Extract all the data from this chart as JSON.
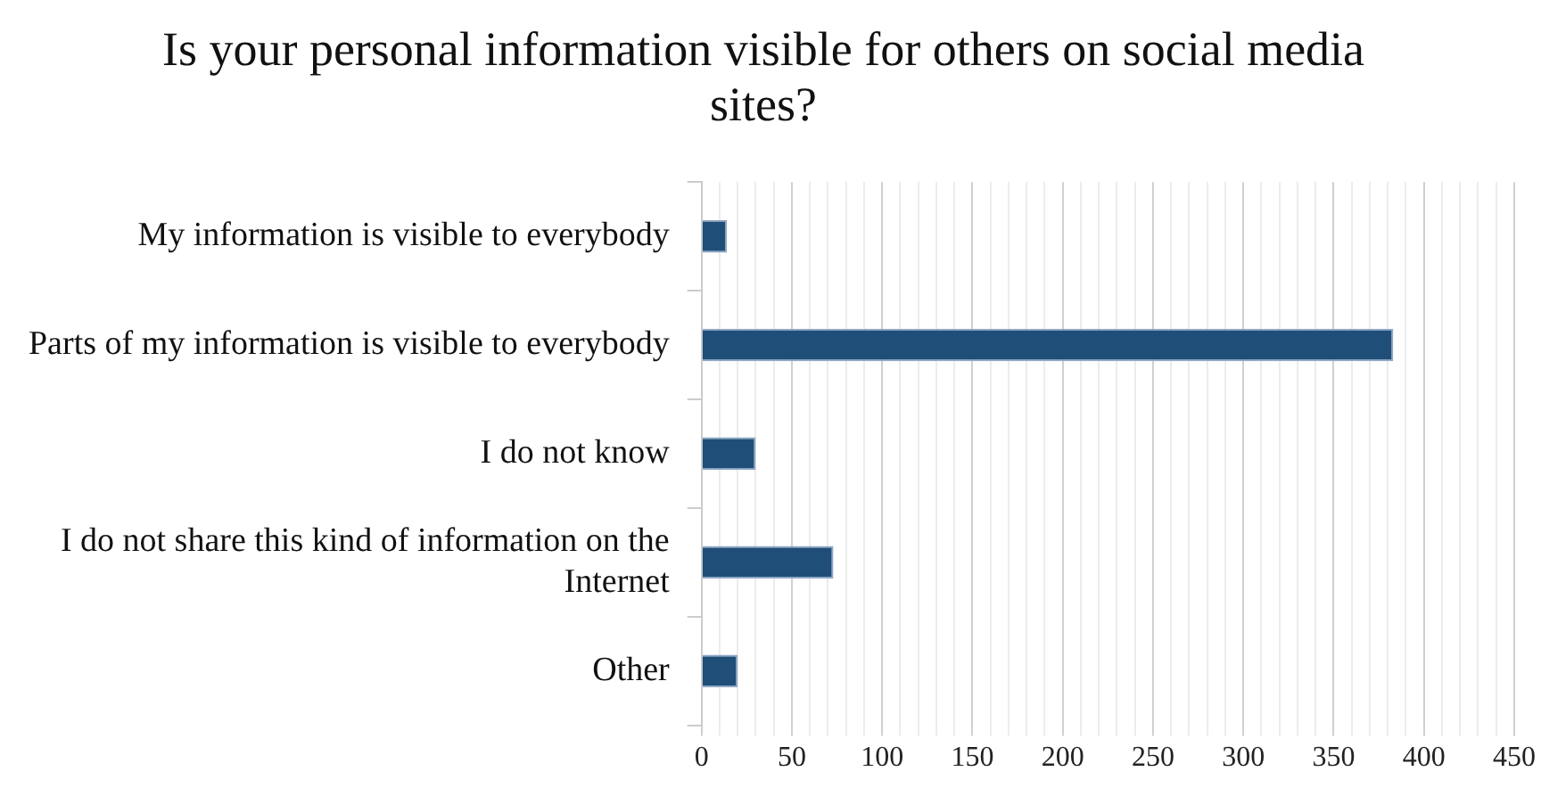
{
  "chart_data": {
    "type": "bar",
    "orientation": "horizontal",
    "title": "Is your personal information visible for others on social media sites?",
    "categories": [
      "My information is visible to everybody",
      "Parts of my information is visible to everybody",
      "I do not know",
      "I do not share this kind of information on the Internet",
      "Other"
    ],
    "values": [
      14,
      383,
      30,
      73,
      20
    ],
    "color": "#1f4e79",
    "xlim": [
      0,
      450
    ],
    "xticks": [
      0,
      {
        "value": 10,
        "label": null
      },
      {
        "value": 20,
        "label": null
      },
      {
        "value": 30,
        "label": null
      },
      {
        "value": 40,
        "label": null
      },
      50,
      {
        "value": 60,
        "label": null
      },
      {
        "value": 70,
        "label": null
      },
      {
        "value": 80,
        "label": null
      },
      {
        "value": 90,
        "label": null
      },
      100,
      {
        "value": 110,
        "label": null
      },
      {
        "value": 120,
        "label": null
      },
      {
        "value": 130,
        "label": null
      },
      {
        "value": 140,
        "label": null
      },
      150,
      {
        "value": 160,
        "label": null
      },
      {
        "value": 170,
        "label": null
      },
      {
        "value": 180,
        "label": null
      },
      {
        "value": 190,
        "label": null
      },
      200,
      {
        "value": 210,
        "label": null
      },
      {
        "value": 220,
        "label": null
      },
      {
        "value": 230,
        "label": null
      },
      {
        "value": 240,
        "label": null
      },
      250,
      {
        "value": 260,
        "label": null
      },
      {
        "value": 270,
        "label": null
      },
      {
        "value": 280,
        "label": null
      },
      {
        "value": 290,
        "label": null
      },
      300,
      {
        "value": 310,
        "label": null
      },
      {
        "value": 320,
        "label": null
      },
      {
        "value": 330,
        "label": null
      },
      {
        "value": 340,
        "label": null
      },
      350,
      {
        "value": 360,
        "label": null
      },
      {
        "value": 370,
        "label": null
      },
      {
        "value": 380,
        "label": null
      },
      {
        "value": 390,
        "label": null
      },
      400,
      {
        "value": 410,
        "label": null
      },
      {
        "value": 420,
        "label": null
      },
      {
        "value": 430,
        "label": null
      },
      {
        "value": 440,
        "label": null
      },
      450
    ],
    "grid": "x",
    "legend": false
  }
}
